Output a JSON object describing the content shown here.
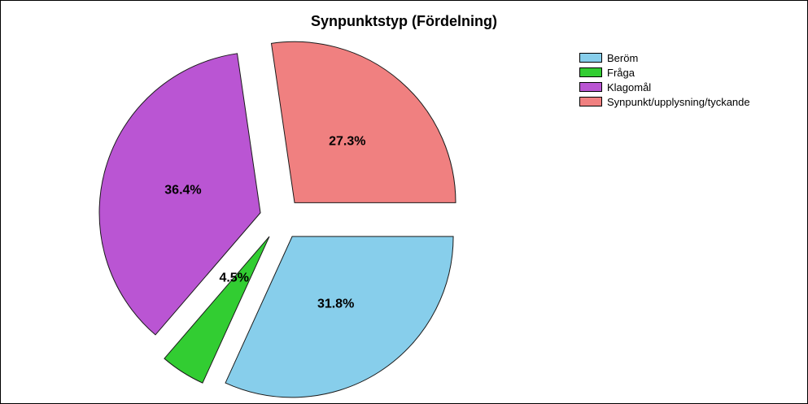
{
  "chart_data": {
    "type": "pie",
    "title": "Synpunktstyp (Fördelning)",
    "slices": [
      {
        "name": "Beröm",
        "value": 31.8,
        "label": "31.8%",
        "color": "#87ceeb"
      },
      {
        "name": "Fråga",
        "value": 4.5,
        "label": "4.5%",
        "color": "#32cd32"
      },
      {
        "name": "Klagomål",
        "value": 36.4,
        "label": "36.4%",
        "color": "#ba55d3"
      },
      {
        "name": "Synpunkt/upplysning/tyckande",
        "value": 27.3,
        "label": "27.3%",
        "color": "#f08080"
      }
    ],
    "legend_position": "top-right",
    "exploded": true
  }
}
